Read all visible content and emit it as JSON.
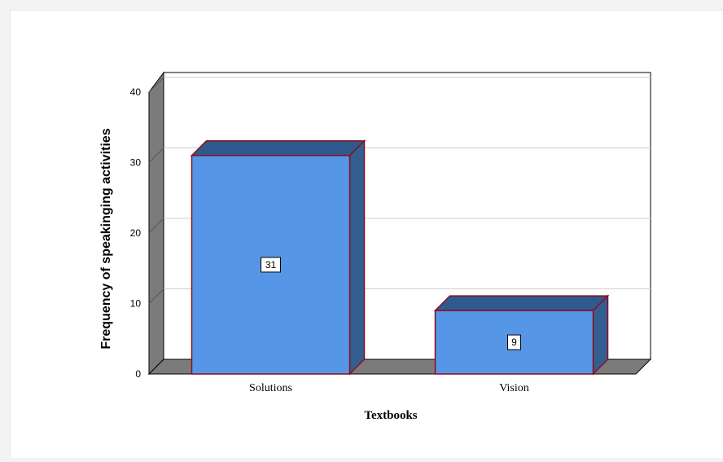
{
  "chart_data": {
    "type": "bar",
    "categories": [
      "Solutions",
      "Vision"
    ],
    "values": [
      31,
      9
    ],
    "data_labels": [
      "31",
      "9"
    ],
    "xlabel": "Textbooks",
    "ylabel": "Frequency of speakinging activities",
    "ylim": [
      0,
      40
    ],
    "yticks": [
      "0",
      "10",
      "20",
      "30",
      "40"
    ],
    "grid": true,
    "style": "3d",
    "colors": {
      "bar_front": "#5597e6",
      "bar_top": "#2f5a8f",
      "bar_side": "#345e92",
      "bar_edge": "#8b0e1a",
      "floor": "#7b7b7b",
      "wall": "#7b7b7b",
      "grid": "#cfcfcf"
    }
  }
}
